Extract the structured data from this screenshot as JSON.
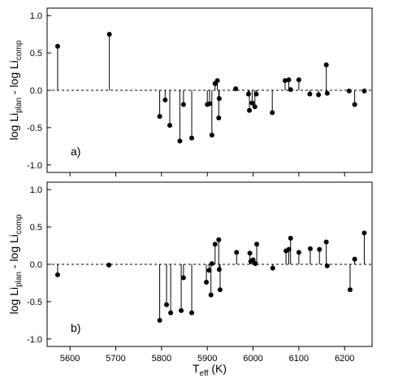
{
  "chart_data": [
    {
      "type": "scatter",
      "style": "stem",
      "panel_label": "a)",
      "xlabel_main": "T",
      "xlabel_sub": "eff",
      "xlabel_unit": " (K)",
      "ylabel_parts": [
        "log Li",
        "plan",
        " - log Li",
        "comp"
      ],
      "xlim": [
        5550,
        6260
      ],
      "ylim": [
        -1.1,
        1.1
      ],
      "xticks": [
        5600,
        5700,
        5800,
        5900,
        6000,
        6100,
        6200
      ],
      "xtick_labels": [
        "5600",
        "5700",
        "5800",
        "5900",
        "6000",
        "6100",
        "6200"
      ],
      "yticks": [
        1.0,
        0.5,
        0.0,
        -0.5,
        -1.0
      ],
      "ytick_labels": [
        "1.0",
        "0.5",
        "0.0",
        "-0.5",
        "-1.0"
      ],
      "show_xtick_labels": false,
      "reference_line": 0,
      "points": [
        {
          "x": 5573,
          "y": 0.59
        },
        {
          "x": 5686,
          "y": 0.75
        },
        {
          "x": 5796,
          "y": -0.35
        },
        {
          "x": 5808,
          "y": -0.13
        },
        {
          "x": 5818,
          "y": -0.47
        },
        {
          "x": 5840,
          "y": -0.68
        },
        {
          "x": 5848,
          "y": -0.19
        },
        {
          "x": 5866,
          "y": -0.64
        },
        {
          "x": 5900,
          "y": -0.19
        },
        {
          "x": 5905,
          "y": -0.18
        },
        {
          "x": 5910,
          "y": -0.6
        },
        {
          "x": 5917,
          "y": 0.09
        },
        {
          "x": 5922,
          "y": 0.13
        },
        {
          "x": 5925,
          "y": -0.37
        },
        {
          "x": 5926,
          "y": -0.11
        },
        {
          "x": 5962,
          "y": 0.02
        },
        {
          "x": 5990,
          "y": -0.05
        },
        {
          "x": 5992,
          "y": -0.27
        },
        {
          "x": 5998,
          "y": -0.17
        },
        {
          "x": 6004,
          "y": -0.22
        },
        {
          "x": 6007,
          "y": -0.05
        },
        {
          "x": 6042,
          "y": -0.3
        },
        {
          "x": 6070,
          "y": 0.13
        },
        {
          "x": 6078,
          "y": 0.14
        },
        {
          "x": 6082,
          "y": 0.01
        },
        {
          "x": 6100,
          "y": 0.14
        },
        {
          "x": 6124,
          "y": -0.05
        },
        {
          "x": 6143,
          "y": -0.06
        },
        {
          "x": 6160,
          "y": 0.34
        },
        {
          "x": 6162,
          "y": -0.04
        },
        {
          "x": 6210,
          "y": -0.01
        },
        {
          "x": 6222,
          "y": -0.19
        },
        {
          "x": 6243,
          "y": -0.01
        }
      ]
    },
    {
      "type": "scatter",
      "style": "stem",
      "panel_label": "b)",
      "xlabel_main": "T",
      "xlabel_sub": "eff",
      "xlabel_unit": " (K)",
      "ylabel_parts": [
        "log Li",
        "plan",
        " - log Li",
        "comp"
      ],
      "xlim": [
        5550,
        6260
      ],
      "ylim": [
        -1.1,
        1.1
      ],
      "xticks": [
        5600,
        5700,
        5800,
        5900,
        6000,
        6100,
        6200
      ],
      "xtick_labels": [
        "5600",
        "5700",
        "5800",
        "5900",
        "6000",
        "6100",
        "6200"
      ],
      "yticks": [
        1.0,
        0.5,
        0.0,
        -0.5,
        -1.0
      ],
      "ytick_labels": [
        "1.0",
        "0.5",
        "0.0",
        "-0.5",
        "-1.0"
      ],
      "show_xtick_labels": true,
      "reference_line": 0,
      "points": [
        {
          "x": 5573,
          "y": -0.14
        },
        {
          "x": 5685,
          "y": -0.01
        },
        {
          "x": 5796,
          "y": -0.75
        },
        {
          "x": 5811,
          "y": -0.54
        },
        {
          "x": 5820,
          "y": -0.65
        },
        {
          "x": 5843,
          "y": -0.62
        },
        {
          "x": 5848,
          "y": -0.18
        },
        {
          "x": 5866,
          "y": -0.65
        },
        {
          "x": 5898,
          "y": -0.24
        },
        {
          "x": 5904,
          "y": -0.08
        },
        {
          "x": 5908,
          "y": -0.41
        },
        {
          "x": 5910,
          "y": 0.01
        },
        {
          "x": 5917,
          "y": 0.27
        },
        {
          "x": 5925,
          "y": 0.33
        },
        {
          "x": 5926,
          "y": -0.07
        },
        {
          "x": 5928,
          "y": -0.34
        },
        {
          "x": 5964,
          "y": 0.16
        },
        {
          "x": 5993,
          "y": 0.15
        },
        {
          "x": 5995,
          "y": 0.04
        },
        {
          "x": 6000,
          "y": 0.06
        },
        {
          "x": 6005,
          "y": 0.01
        },
        {
          "x": 6008,
          "y": 0.27
        },
        {
          "x": 6043,
          "y": -0.05
        },
        {
          "x": 6072,
          "y": 0.18
        },
        {
          "x": 6078,
          "y": 0.2
        },
        {
          "x": 6082,
          "y": 0.35
        },
        {
          "x": 6100,
          "y": 0.16
        },
        {
          "x": 6125,
          "y": 0.21
        },
        {
          "x": 6145,
          "y": 0.2
        },
        {
          "x": 6160,
          "y": 0.3
        },
        {
          "x": 6162,
          "y": -0.02
        },
        {
          "x": 6212,
          "y": -0.34
        },
        {
          "x": 6222,
          "y": 0.07
        },
        {
          "x": 6243,
          "y": 0.42
        }
      ]
    }
  ]
}
